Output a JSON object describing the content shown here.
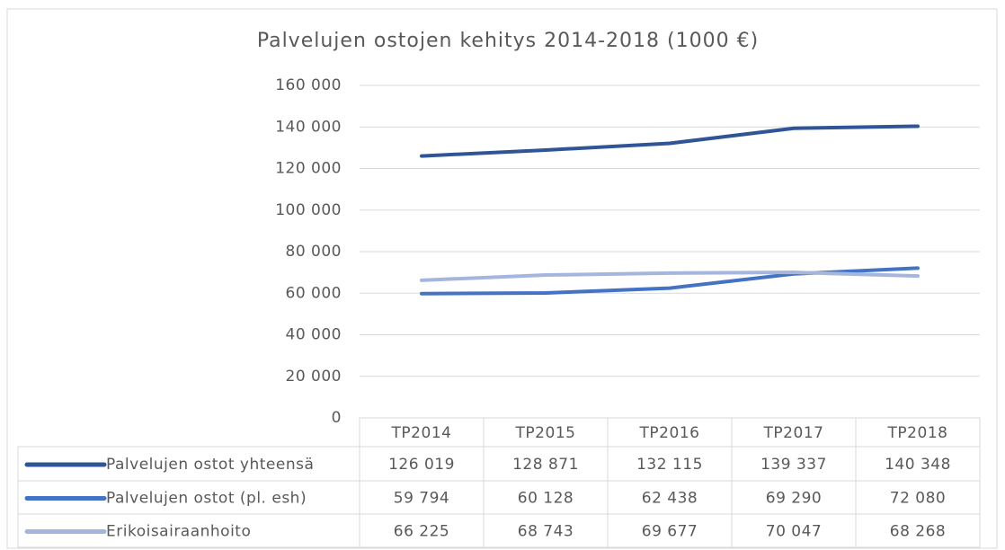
{
  "chart_data": {
    "type": "line",
    "title": "Palvelujen ostojen kehitys 2014-2018 (1000 €)",
    "categories": [
      "TP2014",
      "TP2015",
      "TP2016",
      "TP2017",
      "TP2018"
    ],
    "series": [
      {
        "name": "Palvelujen ostot yhteensä",
        "color": "#2f5597",
        "values": [
          126019,
          128871,
          132115,
          139337,
          140348
        ],
        "value_labels": [
          "126 019",
          "128 871",
          "132 115",
          "139 337",
          "140 348"
        ]
      },
      {
        "name": "Palvelujen ostot (pl. esh)",
        "color": "#4472c4",
        "values": [
          59794,
          60128,
          62438,
          69290,
          72080
        ],
        "value_labels": [
          "59 794",
          "60 128",
          "62 438",
          "69 290",
          "72 080"
        ]
      },
      {
        "name": "Erikoisairaanhoito",
        "color": "#a5b6de",
        "values": [
          66225,
          68743,
          69677,
          70047,
          68268
        ],
        "value_labels": [
          "66 225",
          "68 743",
          "69 677",
          "70 047",
          "68 268"
        ]
      }
    ],
    "ylim": [
      0,
      160000
    ],
    "yticks": [
      0,
      {
        "value": 20000,
        "label": "20 000"
      },
      {
        "value": 40000,
        "label": "40 000"
      },
      {
        "value": 60000,
        "label": "60 000"
      },
      {
        "value": 80000,
        "label": "80 000"
      },
      {
        "value": 100000,
        "label": "100 000"
      },
      {
        "value": 120000,
        "label": "120 000"
      },
      {
        "value": 140000,
        "label": "140 000"
      },
      {
        "value": 160000,
        "label": "160 000"
      }
    ],
    "grid": true
  }
}
